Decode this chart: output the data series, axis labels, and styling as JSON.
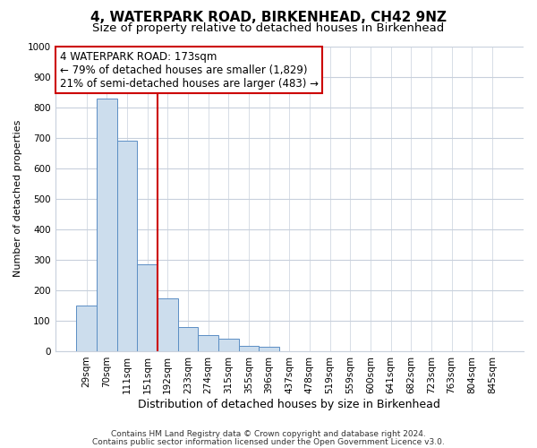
{
  "title": "4, WATERPARK ROAD, BIRKENHEAD, CH42 9NZ",
  "subtitle": "Size of property relative to detached houses in Birkenhead",
  "xlabel": "Distribution of detached houses by size in Birkenhead",
  "ylabel": "Number of detached properties",
  "bar_labels": [
    "29sqm",
    "70sqm",
    "111sqm",
    "151sqm",
    "192sqm",
    "233sqm",
    "274sqm",
    "315sqm",
    "355sqm",
    "396sqm",
    "437sqm",
    "478sqm",
    "519sqm",
    "559sqm",
    "600sqm",
    "641sqm",
    "682sqm",
    "723sqm",
    "763sqm",
    "804sqm",
    "845sqm"
  ],
  "bar_values": [
    150,
    828,
    690,
    285,
    172,
    78,
    53,
    42,
    18,
    15,
    0,
    0,
    0,
    0,
    0,
    0,
    0,
    0,
    0,
    0,
    0
  ],
  "bar_color": "#ccdded",
  "bar_edge_color": "#5b8ec4",
  "ylim": [
    0,
    1000
  ],
  "yticks": [
    0,
    100,
    200,
    300,
    400,
    500,
    600,
    700,
    800,
    900,
    1000
  ],
  "vline_x": 3.5,
  "vline_color": "#cc0000",
  "annotation_line1": "4 WATERPARK ROAD: 173sqm",
  "annotation_line2": "← 79% of detached houses are smaller (1,829)",
  "annotation_line3": "21% of semi-detached houses are larger (483) →",
  "figure_bg": "#ffffff",
  "plot_bg": "#ffffff",
  "grid_color": "#c8d0dc",
  "footer_line1": "Contains HM Land Registry data © Crown copyright and database right 2024.",
  "footer_line2": "Contains public sector information licensed under the Open Government Licence v3.0.",
  "title_fontsize": 11,
  "subtitle_fontsize": 9.5,
  "xlabel_fontsize": 9,
  "ylabel_fontsize": 8,
  "tick_fontsize": 7.5,
  "annotation_fontsize": 8.5,
  "footer_fontsize": 6.5
}
